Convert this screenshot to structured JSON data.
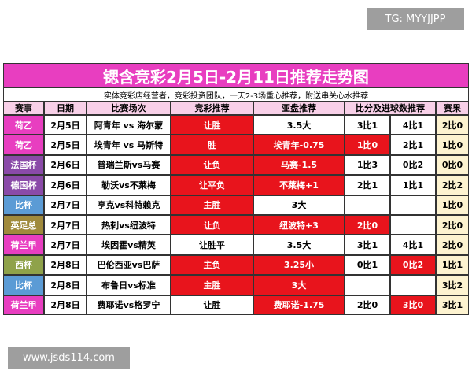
{
  "watermark_top": "TG: MYYJJPP",
  "watermark_bottom": "www.jsds114.com",
  "header": {
    "title": "锶含竞彩2月5日-2月11日推荐走势图",
    "subtitle": "实体竞彩店经营者，竞彩投资团队，一天2-3场重心推荐，附送串关心水推荐"
  },
  "table": {
    "columns": {
      "league": "赛事",
      "date": "日期",
      "match": "比赛场次",
      "jc": "竞彩推荐",
      "ah": "亚盘推荐",
      "score": "比分及进球数推荐",
      "result": "赛果"
    },
    "rows": [
      {
        "league": "荷乙",
        "league_color": "#e83ec0",
        "date": "2月5日",
        "match": "阿青年 vs 海尔蒙",
        "jc": "让胜",
        "ah": "3.5大",
        "s1": "3比1",
        "s2": "4比1",
        "result": "2比0",
        "highlight": [
          "jc"
        ]
      },
      {
        "league": "荷乙",
        "league_color": "#e83ec0",
        "date": "2月5日",
        "match": "埃青年 vs 马斯特",
        "jc": "胜",
        "ah": "埃青年-0.75",
        "s1": "1比0",
        "s2": "2比1",
        "result": "1比0",
        "highlight": [
          "jc",
          "ah",
          "s1"
        ]
      },
      {
        "league": "法国杯",
        "league_color": "#8a4aa8",
        "date": "2月6日",
        "match": "普瑞兰斯vs马赛",
        "jc": "让负",
        "ah": "马赛-1.5",
        "s1": "1比3",
        "s2": "0比2",
        "result": "0比0",
        "highlight": [
          "jc",
          "ah"
        ]
      },
      {
        "league": "德国杯",
        "league_color": "#8a4aa8",
        "date": "2月6日",
        "match": "勒沃vs不莱梅",
        "jc": "让平负",
        "ah": "不莱梅+1",
        "s1": "2比1",
        "s2": "1比1",
        "result": "2比2",
        "highlight": [
          "jc",
          "ah"
        ]
      },
      {
        "league": "比杯",
        "league_color": "#5b9bd5",
        "date": "2月7日",
        "match": "亨克vs科特赖克",
        "jc": "主胜",
        "ah": "3大",
        "result": "1比0",
        "highlight": [
          "jc"
        ]
      },
      {
        "league": "英足总",
        "league_color": "#a08a3c",
        "date": "2月7日",
        "match": "热刺vs纽波特",
        "jc": "让负",
        "ah": "纽波特+3",
        "s1": "2比0",
        "result": "2比0",
        "highlight": [
          "jc",
          "ah",
          "s1"
        ]
      },
      {
        "league": "荷兰甲",
        "league_color": "#e83ec0",
        "date": "2月7日",
        "match": "埃因霍vs精英",
        "jc": "让胜平",
        "ah": "3.5大",
        "s1": "3比1",
        "s2": "4比1",
        "result": "2比0",
        "highlight": []
      },
      {
        "league": "西杯",
        "league_color": "#8fa24a",
        "date": "2月8日",
        "match": "巴伦西亚vs巴萨",
        "jc": "主负",
        "ah": "3.25小",
        "s1": "0比1",
        "s2": "0比2",
        "result": "1比1",
        "highlight": [
          "jc",
          "ah",
          "s2"
        ]
      },
      {
        "league": "比杯",
        "league_color": "#5b9bd5",
        "date": "2月8日",
        "match": "布鲁日vs标准",
        "jc": "主胜",
        "ah": "3大",
        "result": "3比2",
        "highlight": [
          "jc",
          "ah"
        ]
      },
      {
        "league": "荷兰甲",
        "league_color": "#e83ec0",
        "date": "2月8日",
        "match": "费耶诺vs格罗宁",
        "jc": "让胜",
        "ah": "费耶诺-1.75",
        "s1": "2比0",
        "s2": "3比0",
        "result": "3比1",
        "highlight": [
          "ah",
          "s2"
        ]
      }
    ]
  }
}
